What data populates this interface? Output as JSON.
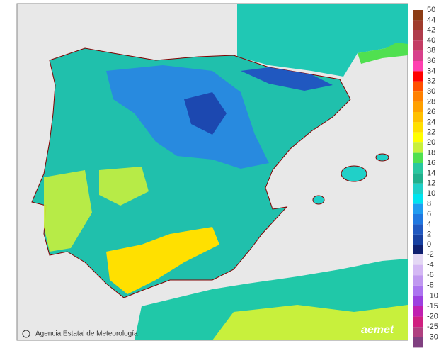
{
  "map": {
    "credit": "Agencia Estatal de Meteorología",
    "logo": "aemet",
    "legend": {
      "positive": [
        {
          "label": "50",
          "color": "#8c3c14"
        },
        {
          "label": "44",
          "color": "#a03c2c"
        },
        {
          "label": "42",
          "color": "#b03c4c"
        },
        {
          "label": "40",
          "color": "#c43c64"
        },
        {
          "label": "38",
          "color": "#d8408c"
        },
        {
          "label": "36",
          "color": "#ff40b0"
        },
        {
          "label": "34",
          "color": "#ff0000"
        },
        {
          "label": "32",
          "color": "#ff5000"
        },
        {
          "label": "30",
          "color": "#ff8000"
        },
        {
          "label": "28",
          "color": "#ffa000"
        },
        {
          "label": "26",
          "color": "#ffc000"
        },
        {
          "label": "24",
          "color": "#ffe000"
        },
        {
          "label": "22",
          "color": "#ffff00"
        },
        {
          "label": "20",
          "color": "#c8f03c"
        },
        {
          "label": "18",
          "color": "#50e050"
        },
        {
          "label": "16",
          "color": "#28c8a0"
        },
        {
          "label": "14",
          "color": "#20b08c"
        },
        {
          "label": "12",
          "color": "#20d0c8"
        },
        {
          "label": "10",
          "color": "#00e4f0"
        },
        {
          "label": "8",
          "color": "#209cf0"
        },
        {
          "label": "6",
          "color": "#2078e0"
        },
        {
          "label": "4",
          "color": "#2058c0"
        },
        {
          "label": "2",
          "color": "#1840a0"
        },
        {
          "label": "0",
          "color": "#102070"
        }
      ],
      "negative": [
        {
          "label": "-2",
          "color": "#e4d8f4"
        },
        {
          "label": "-4",
          "color": "#d4b8f4"
        },
        {
          "label": "-6",
          "color": "#c098f0"
        },
        {
          "label": "-8",
          "color": "#ac74f0"
        },
        {
          "label": "-10",
          "color": "#9c40e0"
        },
        {
          "label": "-15",
          "color": "#c020b0"
        },
        {
          "label": "-20",
          "color": "#d02080"
        },
        {
          "label": "-25",
          "color": "#b04080"
        },
        {
          "label": "-30",
          "color": "#804080"
        }
      ]
    }
  }
}
